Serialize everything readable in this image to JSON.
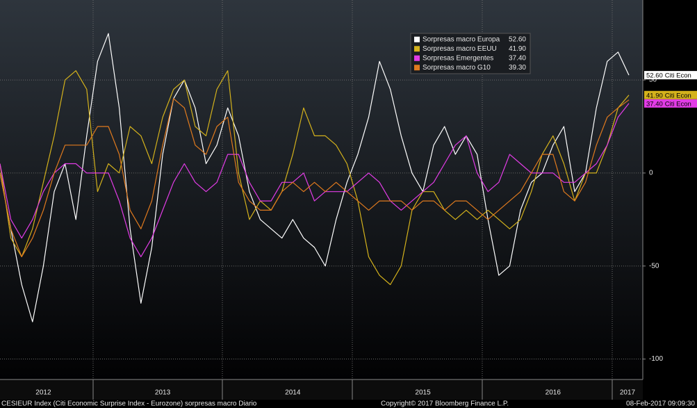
{
  "chart_data": {
    "type": "line",
    "categories": [
      null,
      null,
      null,
      null,
      "2012",
      null,
      null,
      null,
      null,
      null,
      null,
      null,
      null,
      null,
      null,
      "2013",
      null,
      null,
      null,
      null,
      null,
      null,
      null,
      null,
      null,
      null,
      null,
      "2014",
      null,
      null,
      null,
      null,
      null,
      null,
      null,
      null,
      null,
      null,
      null,
      "2015",
      null,
      null,
      null,
      null,
      null,
      null,
      null,
      null,
      null,
      null,
      null,
      "2016",
      null,
      null,
      null,
      null,
      null,
      null,
      "2017"
    ],
    "series": [
      {
        "name": "Sorpresas macro Europa",
        "color": "#ffffff",
        "tag_label": "Citi Econ",
        "values": [
          0,
          -30,
          -60,
          -80,
          -50,
          -10,
          5,
          -25,
          20,
          60,
          75,
          35,
          -30,
          -70,
          -40,
          10,
          40,
          50,
          35,
          5,
          15,
          35,
          20,
          -10,
          -25,
          -30,
          -35,
          -25,
          -35,
          -40,
          -50,
          -25,
          -5,
          10,
          30,
          60,
          45,
          20,
          0,
          -10,
          15,
          25,
          10,
          20,
          10,
          -25,
          -55,
          -50,
          -20,
          -5,
          0,
          15,
          25,
          -10,
          0,
          35,
          60,
          65,
          52.6
        ],
        "value_labels": [
          null,
          null,
          null,
          null,
          null,
          null,
          null,
          null,
          null,
          null,
          null,
          null,
          null,
          null,
          null,
          null,
          null,
          null,
          null,
          null,
          null,
          null,
          null,
          null,
          null,
          null,
          null,
          null,
          null,
          null,
          null,
          null,
          null,
          null,
          null,
          null,
          null,
          null,
          null,
          null,
          null,
          null,
          null,
          null,
          null,
          null,
          null,
          null,
          null,
          null,
          null,
          null,
          null,
          null,
          null,
          null,
          null,
          null,
          "52.60"
        ]
      },
      {
        "name": "Sorpresas macro EEUU",
        "color": "#d4b21c",
        "tag_label": "Citi Econ",
        "values": [
          5,
          -35,
          -45,
          -30,
          -5,
          20,
          50,
          55,
          45,
          -10,
          5,
          0,
          25,
          20,
          5,
          30,
          45,
          50,
          25,
          20,
          45,
          55,
          0,
          -25,
          -15,
          -20,
          -10,
          10,
          35,
          20,
          20,
          15,
          5,
          -15,
          -45,
          -55,
          -60,
          -50,
          -20,
          -10,
          -10,
          -20,
          -25,
          -20,
          -25,
          -20,
          -25,
          -30,
          -25,
          -10,
          10,
          20,
          5,
          -15,
          0,
          0,
          15,
          35,
          41.9
        ],
        "value_labels": [
          null,
          null,
          null,
          null,
          null,
          null,
          null,
          null,
          null,
          null,
          null,
          null,
          null,
          null,
          null,
          null,
          null,
          null,
          null,
          null,
          null,
          null,
          null,
          null,
          null,
          null,
          null,
          null,
          null,
          null,
          null,
          null,
          null,
          null,
          null,
          null,
          null,
          null,
          null,
          null,
          null,
          null,
          null,
          null,
          null,
          null,
          null,
          null,
          null,
          null,
          null,
          null,
          null,
          null,
          null,
          null,
          null,
          null,
          "41.90"
        ]
      },
      {
        "name": "Sorpresas Emergentes",
        "color": "#e23ce6",
        "tag_label": "Citi Econ",
        "values": [
          5,
          -25,
          -35,
          -25,
          -10,
          0,
          5,
          5,
          0,
          0,
          0,
          -15,
          -35,
          -45,
          -35,
          -20,
          -5,
          5,
          -5,
          -10,
          -5,
          10,
          10,
          -5,
          -15,
          -15,
          -5,
          -5,
          0,
          -15,
          -10,
          -10,
          -10,
          -5,
          0,
          -5,
          -15,
          -20,
          -15,
          -10,
          -5,
          5,
          15,
          20,
          0,
          -10,
          -5,
          10,
          5,
          0,
          0,
          0,
          -5,
          -5,
          0,
          5,
          15,
          30,
          37.4
        ],
        "value_labels": [
          null,
          null,
          null,
          null,
          null,
          null,
          null,
          null,
          null,
          null,
          null,
          null,
          null,
          null,
          null,
          null,
          null,
          null,
          null,
          null,
          null,
          null,
          null,
          null,
          null,
          null,
          null,
          null,
          null,
          null,
          null,
          null,
          null,
          null,
          null,
          null,
          null,
          null,
          null,
          null,
          null,
          null,
          null,
          null,
          null,
          null,
          null,
          null,
          null,
          null,
          null,
          null,
          null,
          null,
          null,
          null,
          null,
          null,
          "37.40"
        ]
      },
      {
        "name": "Sorpresas macro G10",
        "color": "#e07a1e",
        "values": [
          0,
          -30,
          -45,
          -35,
          -20,
          0,
          15,
          15,
          15,
          25,
          25,
          10,
          -20,
          -30,
          -15,
          15,
          40,
          35,
          15,
          10,
          25,
          30,
          -5,
          -15,
          -20,
          -20,
          -10,
          -5,
          -10,
          -5,
          -10,
          -5,
          -10,
          -15,
          -20,
          -15,
          -15,
          -15,
          -20,
          -15,
          -15,
          -20,
          -15,
          -15,
          -20,
          -25,
          -20,
          -15,
          -10,
          0,
          10,
          10,
          -10,
          -15,
          -5,
          15,
          30,
          35,
          39.3
        ],
        "value_labels": [
          null,
          null,
          null,
          null,
          null,
          null,
          null,
          null,
          null,
          null,
          null,
          null,
          null,
          null,
          null,
          null,
          null,
          null,
          null,
          null,
          null,
          null,
          null,
          null,
          null,
          null,
          null,
          null,
          null,
          null,
          null,
          null,
          null,
          null,
          null,
          null,
          null,
          null,
          null,
          null,
          null,
          null,
          null,
          null,
          null,
          null,
          null,
          null,
          null,
          null,
          null,
          null,
          null,
          null,
          null,
          null,
          null,
          null,
          "39.30"
        ]
      }
    ],
    "ylim": [
      -111,
      93
    ],
    "yticks": [
      50,
      0,
      -50,
      -100
    ],
    "grid": true,
    "legend": "top",
    "footer": {
      "left": "CESIEUR Index (Citi Economic Surprise Index - Eurozone) sorpresas macro  Diario",
      "center": "Copyright© 2017 Bloomberg Finance L.P.",
      "right": "08-Feb-2017 09:09:30"
    }
  }
}
